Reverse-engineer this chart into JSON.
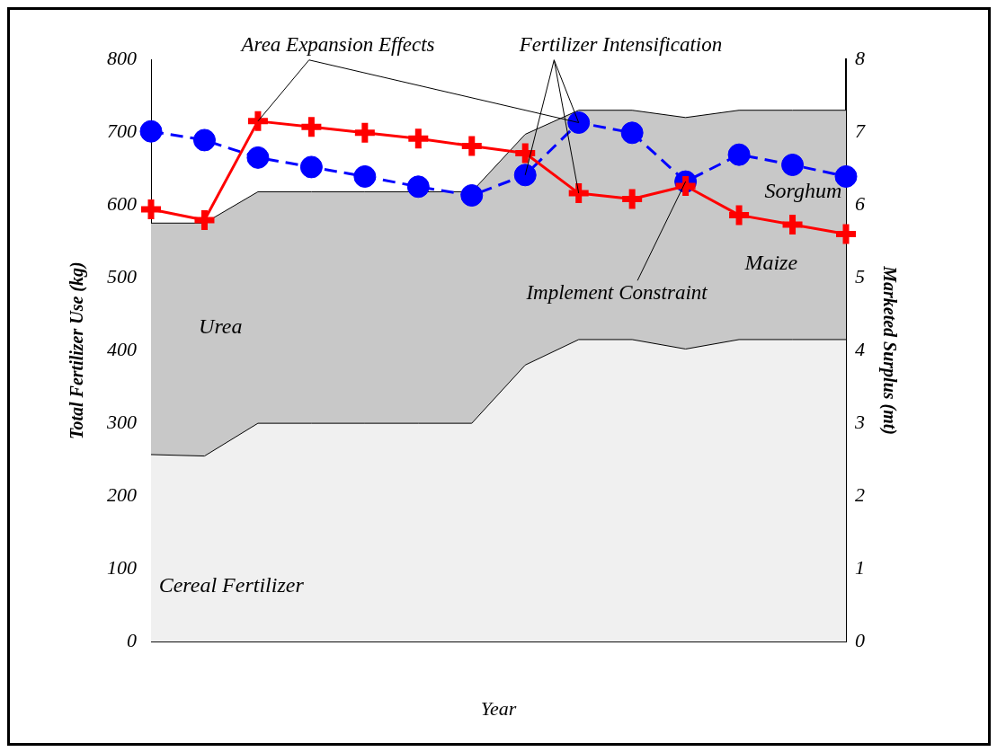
{
  "chart_data": {
    "type": "area",
    "xlabel": "Year",
    "ylabel": "Total Fertilizer Use (kg)",
    "y2label": "Marketed Surplus (mt)",
    "categories": [
      null,
      null,
      null,
      null,
      null,
      null,
      null,
      null,
      null,
      null,
      null,
      null,
      null,
      null
    ],
    "stacked": true,
    "legend": false,
    "grid": false,
    "ylim": [
      0,
      800
    ],
    "yticks": [
      0,
      100,
      200,
      300,
      400,
      500,
      600,
      700,
      800
    ],
    "y2lim": [
      0,
      8
    ],
    "y2ticks": [
      0,
      1,
      2,
      3,
      4,
      5,
      6,
      7,
      8
    ],
    "series": [
      {
        "name": "Cereal Fertilizer",
        "color": "#f0f0f0",
        "values": [
          257,
          255,
          300,
          300,
          300,
          300,
          300,
          380,
          415,
          415,
          402,
          415,
          415,
          415
        ]
      },
      {
        "name": "Urea",
        "color": "#c8c8c8",
        "values": [
          318,
          320,
          318,
          318,
          318,
          318,
          318,
          317,
          315,
          315,
          318,
          315,
          315,
          315
        ]
      },
      {
        "name": "Maize",
        "type": "line",
        "axis": "y2",
        "color": "#ff0000",
        "marker": "cross",
        "line_style": "solid",
        "values": [
          5.94,
          5.79,
          7.15,
          7.07,
          6.99,
          6.91,
          6.81,
          6.71,
          6.16,
          6.08,
          6.26,
          5.86,
          5.73,
          5.6
        ]
      },
      {
        "name": "Sorghum",
        "type": "line",
        "axis": "y2",
        "color": "#0000ff",
        "marker": "circle",
        "line_style": "dashed",
        "values": [
          7.01,
          6.89,
          6.65,
          6.52,
          6.39,
          6.25,
          6.13,
          6.41,
          7.13,
          6.99,
          6.32,
          6.69,
          6.55,
          6.39
        ]
      }
    ],
    "annotations": [
      "Area Expansion Effects",
      "Fertilizer Intensification",
      "Implement Constraint"
    ]
  }
}
